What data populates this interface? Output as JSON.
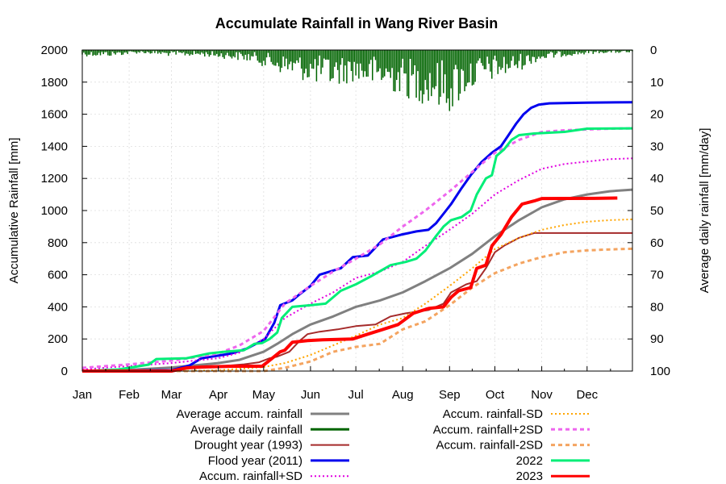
{
  "chart_data": {
    "type": "line",
    "title": "Accumulate Rainfall in Wang River Basin",
    "ylabel": "Accumulative Rainfall [mm]",
    "y2label": "Average daily rainfall [mm/day]",
    "xlabel": "",
    "x_unit": "day of year",
    "xlim": [
      1,
      365
    ],
    "ylim": [
      0,
      2000
    ],
    "y2lim": [
      0,
      100
    ],
    "y2_inverted": true,
    "grid": true,
    "legend_position": "bottom",
    "month_ticks": [
      {
        "label": "Jan",
        "day": 1
      },
      {
        "label": "Feb",
        "day": 32
      },
      {
        "label": "Mar",
        "day": 60
      },
      {
        "label": "Apr",
        "day": 91
      },
      {
        "label": "May",
        "day": 121
      },
      {
        "label": "Jun",
        "day": 152
      },
      {
        "label": "Jul",
        "day": 182
      },
      {
        "label": "Aug",
        "day": 213
      },
      {
        "label": "Sep",
        "day": 244
      },
      {
        "label": "Oct",
        "day": 274
      },
      {
        "label": "Nov",
        "day": 305
      },
      {
        "label": "Dec",
        "day": 335
      }
    ],
    "y_ticks": [
      0,
      200,
      400,
      600,
      800,
      1000,
      1200,
      1400,
      1600,
      1800,
      2000
    ],
    "y2_ticks": [
      0,
      10,
      20,
      30,
      40,
      50,
      60,
      70,
      80,
      90,
      100
    ],
    "daily_rainfall": {
      "name": "Average daily rainfall",
      "color": "#006400",
      "envelope": [
        [
          1,
          2
        ],
        [
          20,
          2
        ],
        [
          40,
          1
        ],
        [
          60,
          2
        ],
        [
          80,
          2
        ],
        [
          100,
          3
        ],
        [
          115,
          4
        ],
        [
          125,
          6
        ],
        [
          135,
          8
        ],
        [
          150,
          10
        ],
        [
          165,
          12
        ],
        [
          180,
          10
        ],
        [
          195,
          12
        ],
        [
          210,
          14
        ],
        [
          220,
          16
        ],
        [
          235,
          18
        ],
        [
          245,
          20
        ],
        [
          255,
          14
        ],
        [
          270,
          10
        ],
        [
          285,
          8
        ],
        [
          300,
          4
        ],
        [
          320,
          2
        ],
        [
          345,
          1
        ],
        [
          365,
          1
        ]
      ]
    },
    "series": [
      {
        "name": "Average accum. rainfall",
        "color": "#808080",
        "style": "solid",
        "width": 3,
        "points": [
          [
            1,
            0
          ],
          [
            30,
            6
          ],
          [
            60,
            22
          ],
          [
            75,
            35
          ],
          [
            91,
            50
          ],
          [
            105,
            70
          ],
          [
            121,
            120
          ],
          [
            130,
            170
          ],
          [
            140,
            230
          ],
          [
            152,
            290
          ],
          [
            167,
            340
          ],
          [
            182,
            400
          ],
          [
            198,
            440
          ],
          [
            213,
            490
          ],
          [
            228,
            560
          ],
          [
            244,
            640
          ],
          [
            259,
            730
          ],
          [
            274,
            840
          ],
          [
            290,
            940
          ],
          [
            305,
            1020
          ],
          [
            320,
            1070
          ],
          [
            335,
            1100
          ],
          [
            350,
            1120
          ],
          [
            365,
            1130
          ]
        ]
      },
      {
        "name": "Drought year (1993)",
        "color": "#a52a2a",
        "style": "solid",
        "width": 2,
        "points": [
          [
            1,
            0
          ],
          [
            50,
            0
          ],
          [
            60,
            5
          ],
          [
            70,
            20
          ],
          [
            85,
            30
          ],
          [
            95,
            32
          ],
          [
            108,
            42
          ],
          [
            118,
            55
          ],
          [
            125,
            80
          ],
          [
            130,
            90
          ],
          [
            138,
            120
          ],
          [
            145,
            190
          ],
          [
            150,
            230
          ],
          [
            158,
            245
          ],
          [
            170,
            260
          ],
          [
            182,
            280
          ],
          [
            195,
            290
          ],
          [
            205,
            340
          ],
          [
            215,
            360
          ],
          [
            230,
            380
          ],
          [
            240,
            420
          ],
          [
            245,
            490
          ],
          [
            255,
            540
          ],
          [
            262,
            560
          ],
          [
            268,
            640
          ],
          [
            274,
            740
          ],
          [
            280,
            780
          ],
          [
            290,
            830
          ],
          [
            300,
            860
          ],
          [
            365,
            860
          ]
        ]
      },
      {
        "name": "Flood year (2011)",
        "color": "#0000ee",
        "style": "solid",
        "width": 3,
        "points": [
          [
            1,
            0
          ],
          [
            60,
            5
          ],
          [
            72,
            35
          ],
          [
            80,
            80
          ],
          [
            90,
            95
          ],
          [
            100,
            110
          ],
          [
            110,
            140
          ],
          [
            118,
            180
          ],
          [
            122,
            200
          ],
          [
            128,
            300
          ],
          [
            132,
            410
          ],
          [
            140,
            440
          ],
          [
            145,
            480
          ],
          [
            152,
            530
          ],
          [
            158,
            600
          ],
          [
            165,
            620
          ],
          [
            172,
            640
          ],
          [
            180,
            710
          ],
          [
            190,
            720
          ],
          [
            200,
            820
          ],
          [
            212,
            850
          ],
          [
            222,
            870
          ],
          [
            230,
            880
          ],
          [
            235,
            920
          ],
          [
            240,
            980
          ],
          [
            245,
            1040
          ],
          [
            252,
            1140
          ],
          [
            258,
            1220
          ],
          [
            265,
            1300
          ],
          [
            272,
            1360
          ],
          [
            278,
            1400
          ],
          [
            283,
            1470
          ],
          [
            288,
            1540
          ],
          [
            293,
            1600
          ],
          [
            298,
            1640
          ],
          [
            303,
            1660
          ],
          [
            310,
            1668
          ],
          [
            320,
            1670
          ],
          [
            335,
            1672
          ],
          [
            365,
            1675
          ]
        ]
      },
      {
        "name": "Accum. rainfall+SD",
        "color": "#e000e0",
        "style": "dotted",
        "width": 2,
        "points": [
          [
            1,
            10
          ],
          [
            30,
            30
          ],
          [
            60,
            50
          ],
          [
            75,
            65
          ],
          [
            91,
            80
          ],
          [
            105,
            115
          ],
          [
            121,
            200
          ],
          [
            135,
            330
          ],
          [
            152,
            420
          ],
          [
            167,
            490
          ],
          [
            182,
            580
          ],
          [
            198,
            620
          ],
          [
            213,
            680
          ],
          [
            228,
            780
          ],
          [
            244,
            880
          ],
          [
            259,
            980
          ],
          [
            274,
            1100
          ],
          [
            290,
            1190
          ],
          [
            305,
            1260
          ],
          [
            320,
            1290
          ],
          [
            335,
            1305
          ],
          [
            350,
            1320
          ],
          [
            365,
            1325
          ]
        ]
      },
      {
        "name": "Accum. rainfall-SD",
        "color": "#ffa500",
        "style": "dotted",
        "width": 2,
        "points": [
          [
            1,
            0
          ],
          [
            60,
            0
          ],
          [
            91,
            5
          ],
          [
            121,
            25
          ],
          [
            135,
            50
          ],
          [
            152,
            100
          ],
          [
            167,
            160
          ],
          [
            182,
            220
          ],
          [
            198,
            290
          ],
          [
            213,
            330
          ],
          [
            228,
            420
          ],
          [
            244,
            530
          ],
          [
            259,
            640
          ],
          [
            274,
            760
          ],
          [
            290,
            830
          ],
          [
            305,
            880
          ],
          [
            320,
            910
          ],
          [
            335,
            930
          ],
          [
            350,
            940
          ],
          [
            365,
            945
          ]
        ]
      },
      {
        "name": "Accum. rainfall+2SD",
        "color": "#ee66ee",
        "style": "dashed",
        "width": 3,
        "points": [
          [
            1,
            20
          ],
          [
            30,
            40
          ],
          [
            60,
            65
          ],
          [
            75,
            85
          ],
          [
            91,
            110
          ],
          [
            105,
            160
          ],
          [
            121,
            250
          ],
          [
            135,
            420
          ],
          [
            152,
            530
          ],
          [
            167,
            620
          ],
          [
            182,
            700
          ],
          [
            198,
            790
          ],
          [
            213,
            900
          ],
          [
            228,
            1000
          ],
          [
            244,
            1120
          ],
          [
            259,
            1240
          ],
          [
            274,
            1360
          ],
          [
            290,
            1440
          ],
          [
            305,
            1490
          ],
          [
            320,
            1500
          ],
          [
            335,
            1505
          ],
          [
            350,
            1510
          ],
          [
            365,
            1512
          ]
        ]
      },
      {
        "name": "Accum. rainfall-2SD",
        "color": "#f4a460",
        "style": "dashed",
        "width": 3,
        "points": [
          [
            1,
            0
          ],
          [
            121,
            0
          ],
          [
            135,
            20
          ],
          [
            152,
            60
          ],
          [
            167,
            120
          ],
          [
            182,
            150
          ],
          [
            198,
            170
          ],
          [
            213,
            260
          ],
          [
            228,
            310
          ],
          [
            244,
            410
          ],
          [
            259,
            520
          ],
          [
            274,
            610
          ],
          [
            290,
            670
          ],
          [
            305,
            710
          ],
          [
            320,
            740
          ],
          [
            335,
            752
          ],
          [
            350,
            758
          ],
          [
            365,
            762
          ]
        ]
      },
      {
        "name": "2022",
        "color": "#00ee77",
        "style": "solid",
        "width": 3,
        "points": [
          [
            1,
            0
          ],
          [
            25,
            10
          ],
          [
            45,
            40
          ],
          [
            50,
            75
          ],
          [
            70,
            80
          ],
          [
            85,
            110
          ],
          [
            95,
            120
          ],
          [
            108,
            130
          ],
          [
            115,
            170
          ],
          [
            120,
            175
          ],
          [
            125,
            200
          ],
          [
            130,
            240
          ],
          [
            133,
            330
          ],
          [
            140,
            400
          ],
          [
            152,
            410
          ],
          [
            162,
            420
          ],
          [
            172,
            500
          ],
          [
            182,
            540
          ],
          [
            192,
            590
          ],
          [
            205,
            660
          ],
          [
            215,
            680
          ],
          [
            222,
            700
          ],
          [
            228,
            750
          ],
          [
            235,
            840
          ],
          [
            240,
            900
          ],
          [
            245,
            940
          ],
          [
            252,
            960
          ],
          [
            258,
            1000
          ],
          [
            262,
            1100
          ],
          [
            268,
            1200
          ],
          [
            272,
            1220
          ],
          [
            275,
            1340
          ],
          [
            280,
            1380
          ],
          [
            285,
            1440
          ],
          [
            290,
            1470
          ],
          [
            300,
            1480
          ],
          [
            320,
            1490
          ],
          [
            335,
            1510
          ],
          [
            365,
            1512
          ]
        ]
      },
      {
        "name": "2023",
        "color": "#ff0000",
        "style": "solid",
        "width": 4,
        "points": [
          [
            1,
            0
          ],
          [
            60,
            0
          ],
          [
            70,
            20
          ],
          [
            80,
            25
          ],
          [
            100,
            30
          ],
          [
            120,
            30
          ],
          [
            124,
            60
          ],
          [
            128,
            90
          ],
          [
            132,
            120
          ],
          [
            135,
            130
          ],
          [
            140,
            180
          ],
          [
            150,
            190
          ],
          [
            160,
            195
          ],
          [
            180,
            200
          ],
          [
            190,
            230
          ],
          [
            200,
            260
          ],
          [
            210,
            290
          ],
          [
            220,
            360
          ],
          [
            230,
            390
          ],
          [
            240,
            400
          ],
          [
            245,
            460
          ],
          [
            250,
            500
          ],
          [
            258,
            520
          ],
          [
            262,
            640
          ],
          [
            268,
            660
          ],
          [
            272,
            780
          ],
          [
            278,
            850
          ],
          [
            285,
            960
          ],
          [
            292,
            1040
          ],
          [
            300,
            1060
          ],
          [
            305,
            1075
          ],
          [
            340,
            1076
          ],
          [
            355,
            1078
          ]
        ]
      }
    ]
  }
}
